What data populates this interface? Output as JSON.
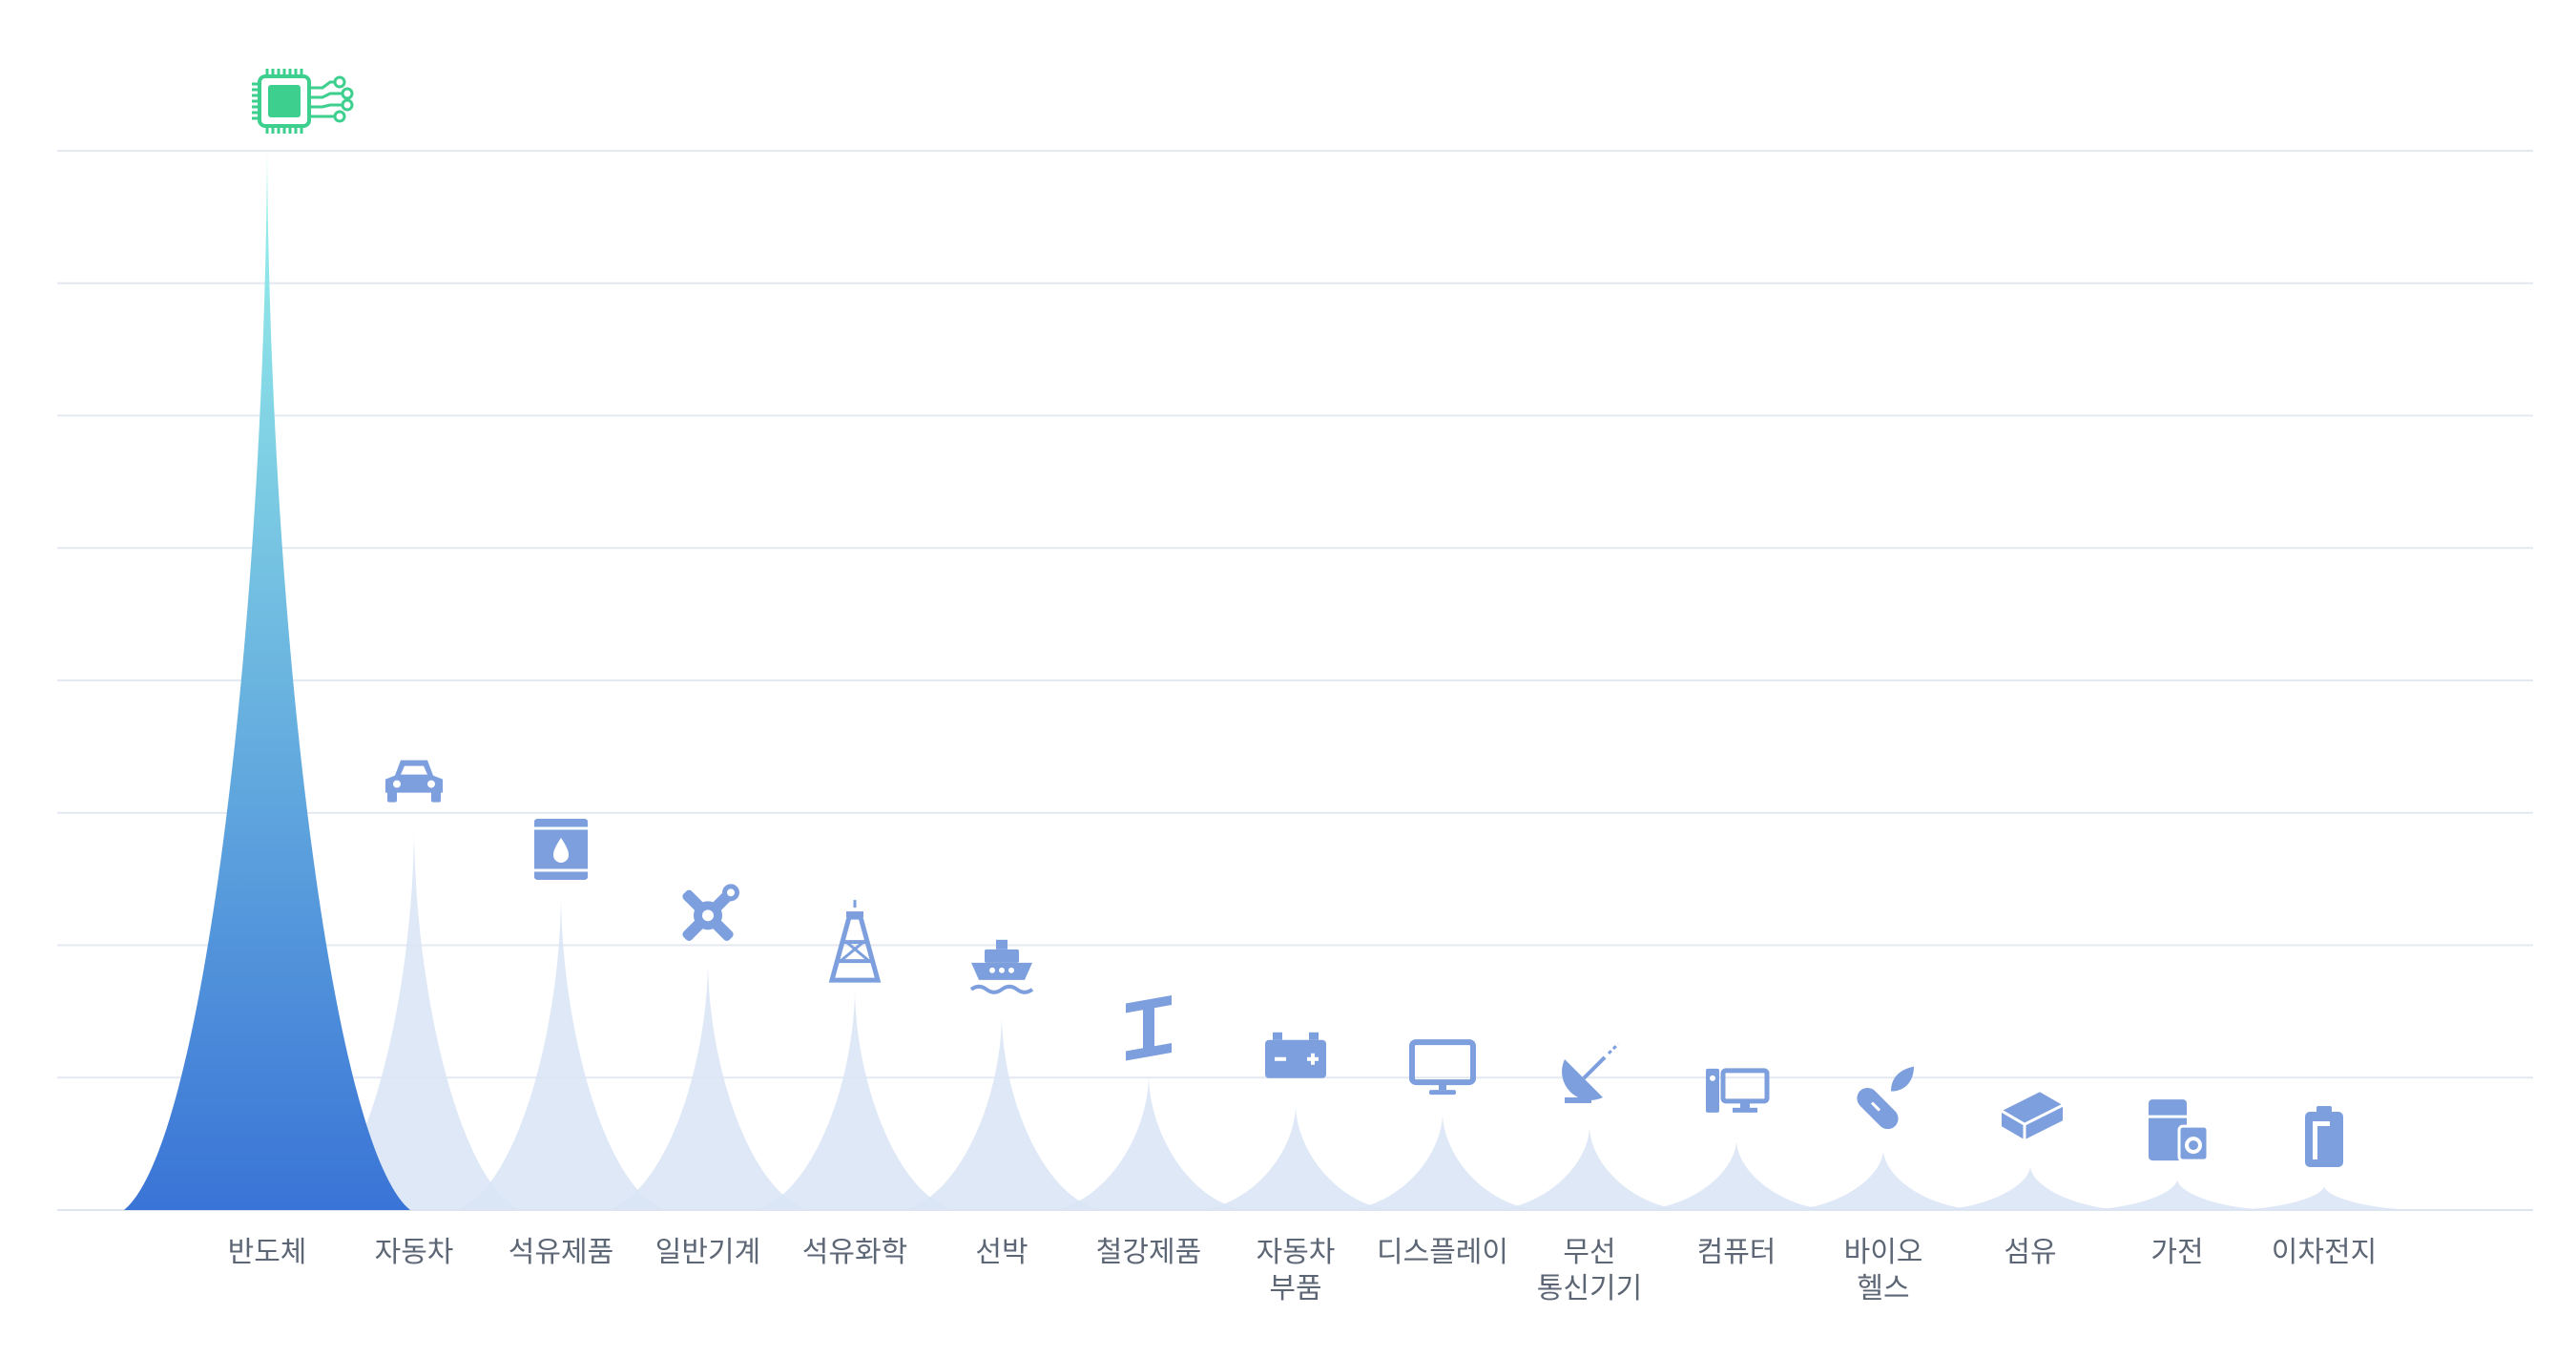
{
  "chart_data": {
    "type": "area",
    "title": "",
    "xlabel": "",
    "ylabel": "",
    "ylim": [
      0,
      8
    ],
    "grid": true,
    "highlight_color": "#3a74d6",
    "highlight_top_color": "#9af4ea",
    "base_color": "#d9e4f5",
    "icon_color": "#7e9fdd",
    "highlight_icon_color": "#3ccf8e",
    "categories": [
      {
        "label": [
          "반도체"
        ],
        "value": 8.0,
        "icon": "chip-icon",
        "highlight": true
      },
      {
        "label": [
          "자동차"
        ],
        "value": 2.85,
        "icon": "car-icon"
      },
      {
        "label": [
          "석유제품"
        ],
        "value": 2.35,
        "icon": "oil-barrel-icon"
      },
      {
        "label": [
          "일반기계"
        ],
        "value": 1.85,
        "icon": "wrench-gear-icon"
      },
      {
        "label": [
          "석유화학"
        ],
        "value": 1.65,
        "icon": "oil-rig-icon"
      },
      {
        "label": [
          "선박"
        ],
        "value": 1.45,
        "icon": "ship-icon"
      },
      {
        "label": [
          "철강제품"
        ],
        "value": 1.0,
        "icon": "steel-beam-icon"
      },
      {
        "label": [
          "자동차",
          "부품"
        ],
        "value": 0.78,
        "icon": "battery-icon"
      },
      {
        "label": [
          "디스플레이"
        ],
        "value": 0.72,
        "icon": "monitor-icon"
      },
      {
        "label": [
          "무선",
          "통신기기"
        ],
        "value": 0.62,
        "icon": "satellite-dish-icon"
      },
      {
        "label": [
          "컴퓨터"
        ],
        "value": 0.52,
        "icon": "computer-icon"
      },
      {
        "label": [
          "바이오",
          "헬스"
        ],
        "value": 0.45,
        "icon": "capsule-leaf-icon"
      },
      {
        "label": [
          "섬유"
        ],
        "value": 0.33,
        "icon": "fabric-icon"
      },
      {
        "label": [
          "가전"
        ],
        "value": 0.23,
        "icon": "appliance-icon"
      },
      {
        "label": [
          "이차전지"
        ],
        "value": 0.18,
        "icon": "cell-battery-icon"
      }
    ]
  }
}
